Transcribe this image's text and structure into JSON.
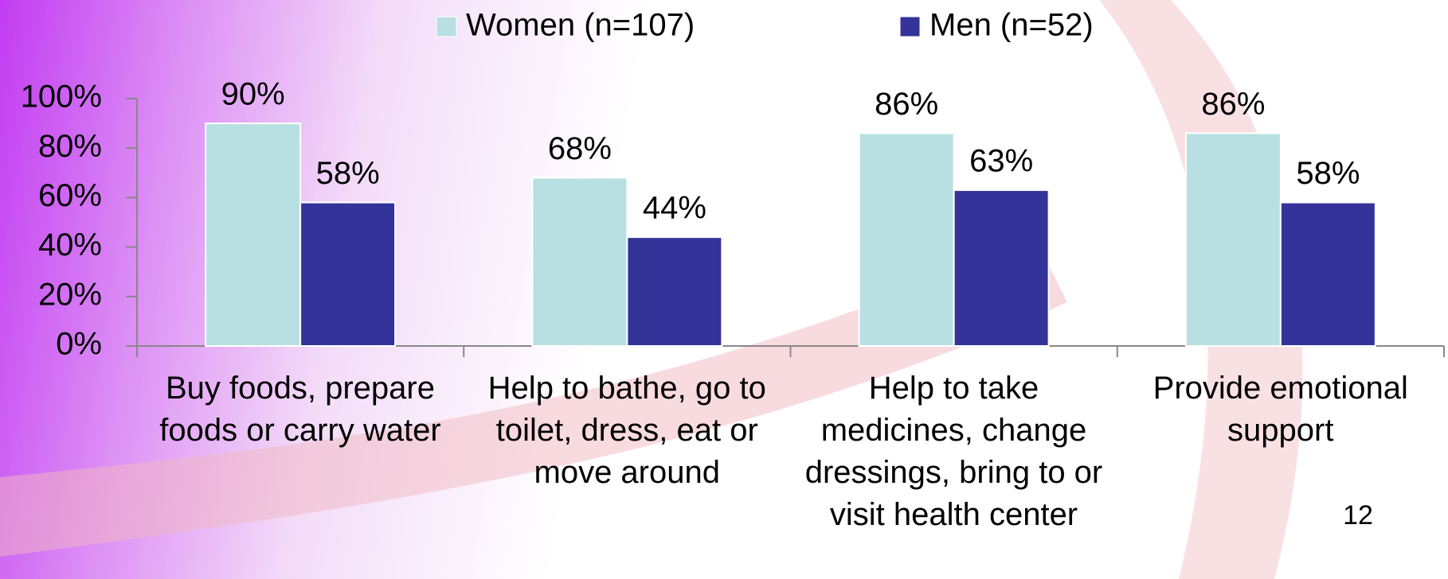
{
  "chart_data": {
    "type": "bar",
    "categories": [
      "Buy foods, prepare foods or carry water",
      "Help to bathe, go to toilet, dress, eat or move around",
      "Help to take medicines, change dressings, bring to or visit health center",
      "Provide emotional support"
    ],
    "series": [
      {
        "name": "Women (n=107)",
        "color": "#b8e0e3",
        "values": [
          90,
          68,
          86,
          86
        ],
        "value_labels": [
          "90%",
          "68%",
          "86%",
          "86%"
        ]
      },
      {
        "name": "Men (n=52)",
        "color": "#333399",
        "values": [
          58,
          44,
          63,
          58
        ],
        "value_labels": [
          "58%",
          "44%",
          "63%",
          "58%"
        ]
      }
    ],
    "ylim": [
      0,
      100
    ],
    "yticks": [
      {
        "value": 0,
        "label": "0%"
      },
      {
        "value": 20,
        "label": "20%"
      },
      {
        "value": 40,
        "label": "40%"
      },
      {
        "value": 60,
        "label": "60%"
      },
      {
        "value": 80,
        "label": "80%"
      },
      {
        "value": 100,
        "label": "100%"
      }
    ],
    "legend": "top",
    "page_number": "12"
  }
}
